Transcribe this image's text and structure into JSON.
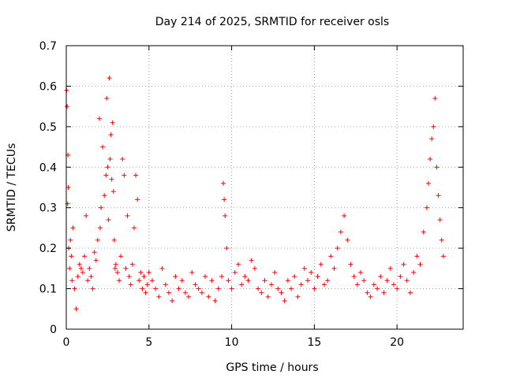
{
  "chart_data": {
    "type": "scatter",
    "title": "Day 214 of 2025, SRMTID for receiver osls",
    "xlabel": "GPS time / hours",
    "ylabel": "SRMTID / TECUs",
    "xlim": [
      0,
      24
    ],
    "ylim": [
      0,
      0.7
    ],
    "xticks": [
      0,
      5,
      10,
      15,
      20
    ],
    "yticks": [
      0,
      0.1,
      0.2,
      0.3,
      0.4,
      0.5,
      0.6,
      0.7
    ],
    "xtick_labels": [
      "0",
      "5",
      "10",
      "15",
      "20"
    ],
    "ytick_labels": [
      "0",
      "0.1",
      "0.2",
      "0.3",
      "0.4",
      "0.5",
      "0.6",
      "0.7"
    ],
    "grid": true,
    "marker": "+",
    "series": [
      {
        "name": "SRMTID",
        "color": "#ff0000",
        "x": [
          0.02,
          0.05,
          0.08,
          0.1,
          0.12,
          0.15,
          0.2,
          0.25,
          0.3,
          0.35,
          0.4,
          0.5,
          0.6,
          0.7,
          0.8,
          0.9,
          1.0,
          1.1,
          1.2,
          1.3,
          1.4,
          1.5,
          1.6,
          1.7,
          1.8,
          1.9,
          2.0,
          2.05,
          2.1,
          2.2,
          2.3,
          2.4,
          2.45,
          2.5,
          2.55,
          2.6,
          2.65,
          2.7,
          2.75,
          2.8,
          2.85,
          2.9,
          2.95,
          3.0,
          3.1,
          3.2,
          3.3,
          3.4,
          3.5,
          3.6,
          3.7,
          3.8,
          3.9,
          4.0,
          4.1,
          4.2,
          4.3,
          4.4,
          4.5,
          4.6,
          4.7,
          4.8,
          4.9,
          5.0,
          5.2,
          5.4,
          5.6,
          5.8,
          6.0,
          6.2,
          6.4,
          6.6,
          6.8,
          7.0,
          7.2,
          7.4,
          7.6,
          7.8,
          8.0,
          8.2,
          8.4,
          8.6,
          8.8,
          9.0,
          9.2,
          9.4,
          9.5,
          9.55,
          9.6,
          9.7,
          9.8,
          10.0,
          10.2,
          10.4,
          10.6,
          10.8,
          11.0,
          11.2,
          11.4,
          11.6,
          11.8,
          12.0,
          12.2,
          12.4,
          12.6,
          12.8,
          13.0,
          13.2,
          13.4,
          13.6,
          13.8,
          14.0,
          14.2,
          14.4,
          14.6,
          14.8,
          15.0,
          15.2,
          15.4,
          15.6,
          15.8,
          16.0,
          16.2,
          16.4,
          16.6,
          16.8,
          17.0,
          17.2,
          17.4,
          17.6,
          17.8,
          18.0,
          18.2,
          18.4,
          18.6,
          18.8,
          19.0,
          19.2,
          19.4,
          19.6,
          19.8,
          20.0,
          20.2,
          20.4,
          20.6,
          20.8,
          21.0,
          21.2,
          21.4,
          21.6,
          21.8,
          21.9,
          22.0,
          22.1,
          22.2,
          22.3,
          22.4,
          22.5,
          22.6,
          22.7,
          22.8
        ],
        "y": [
          0.59,
          0.55,
          0.31,
          0.43,
          0.35,
          0.2,
          0.15,
          0.22,
          0.18,
          0.12,
          0.25,
          0.1,
          0.05,
          0.13,
          0.16,
          0.15,
          0.14,
          0.18,
          0.28,
          0.12,
          0.15,
          0.13,
          0.1,
          0.19,
          0.17,
          0.22,
          0.52,
          0.25,
          0.3,
          0.45,
          0.33,
          0.38,
          0.57,
          0.4,
          0.27,
          0.62,
          0.42,
          0.48,
          0.37,
          0.51,
          0.34,
          0.22,
          0.15,
          0.16,
          0.14,
          0.12,
          0.18,
          0.42,
          0.38,
          0.15,
          0.28,
          0.13,
          0.11,
          0.16,
          0.25,
          0.38,
          0.32,
          0.12,
          0.14,
          0.1,
          0.13,
          0.09,
          0.11,
          0.14,
          0.12,
          0.1,
          0.08,
          0.15,
          0.11,
          0.09,
          0.07,
          0.13,
          0.1,
          0.12,
          0.09,
          0.08,
          0.14,
          0.11,
          0.1,
          0.09,
          0.13,
          0.08,
          0.12,
          0.07,
          0.1,
          0.13,
          0.36,
          0.32,
          0.28,
          0.2,
          0.12,
          0.1,
          0.14,
          0.16,
          0.11,
          0.13,
          0.12,
          0.17,
          0.15,
          0.1,
          0.09,
          0.12,
          0.08,
          0.11,
          0.14,
          0.1,
          0.09,
          0.07,
          0.12,
          0.1,
          0.13,
          0.08,
          0.11,
          0.15,
          0.12,
          0.14,
          0.1,
          0.13,
          0.16,
          0.11,
          0.12,
          0.18,
          0.15,
          0.2,
          0.24,
          0.28,
          0.22,
          0.16,
          0.13,
          0.11,
          0.14,
          0.12,
          0.09,
          0.08,
          0.11,
          0.1,
          0.13,
          0.09,
          0.12,
          0.15,
          0.11,
          0.1,
          0.13,
          0.16,
          0.12,
          0.09,
          0.14,
          0.18,
          0.16,
          0.24,
          0.3,
          0.36,
          0.42,
          0.47,
          0.5,
          0.57,
          0.4,
          0.33,
          0.27,
          0.22,
          0.18
        ]
      }
    ]
  }
}
